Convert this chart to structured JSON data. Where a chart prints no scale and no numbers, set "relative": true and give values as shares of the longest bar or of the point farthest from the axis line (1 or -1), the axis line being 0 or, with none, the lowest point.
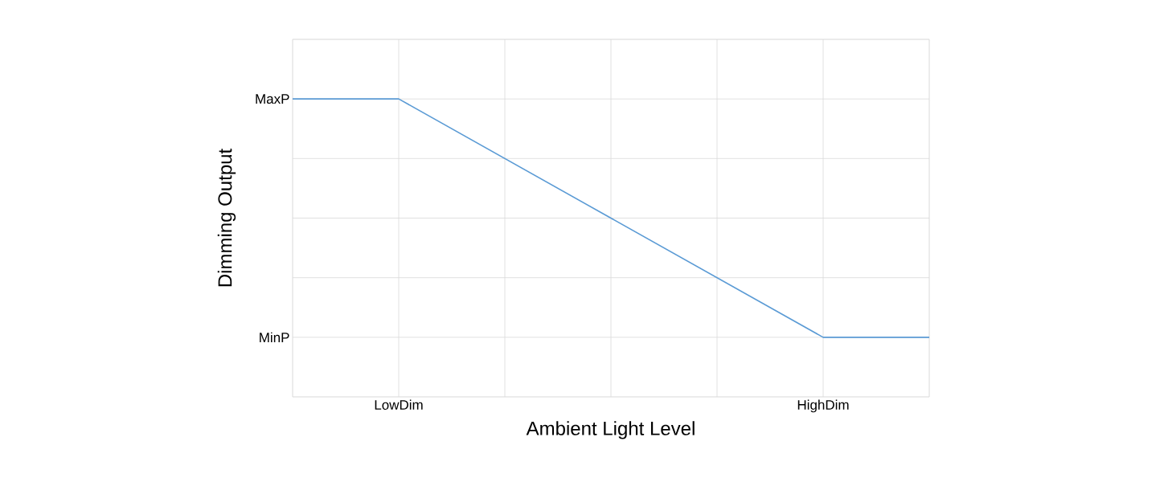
{
  "chart_data": {
    "type": "line",
    "xlabel": "Ambient Light Level",
    "ylabel": "Dimming Output",
    "relative": true,
    "categories": [
      null,
      "LowDim",
      null,
      null,
      null,
      "HighDim",
      null
    ],
    "series": [
      {
        "color": "#5b9bd5",
        "values": [
          1,
          1,
          0.8,
          0.6,
          0.4,
          0.2,
          0.2
        ]
      }
    ],
    "annotations": [
      "MaxP",
      "MinP"
    ],
    "grid": true,
    "marker": "none",
    "line_style": "solid"
  }
}
